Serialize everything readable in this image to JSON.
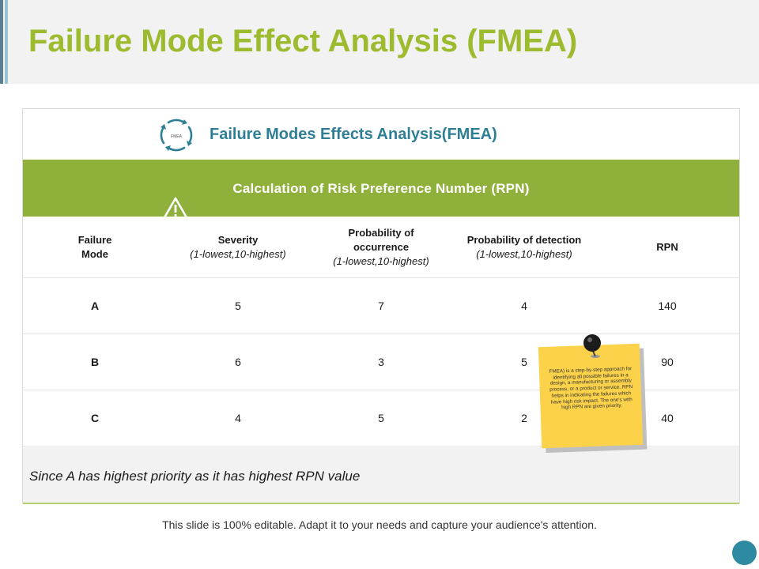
{
  "slide": {
    "title": "Failure Mode Effect Analysis (FMEA)",
    "footer": "This slide is 100% editable. Adapt it to your needs and capture your audience's attention."
  },
  "card": {
    "title": "Failure Modes Effects Analysis(FMEA)",
    "band_title": "Calculation of Risk Preference Number (RPN)",
    "icon_label": "FMEA"
  },
  "table": {
    "headers": [
      {
        "main": "Failure Mode",
        "sub": ""
      },
      {
        "main": "Severity",
        "sub": "(1-lowest,10-highest)"
      },
      {
        "main": "Probability of occurrence",
        "sub": "(1-lowest,10-highest)"
      },
      {
        "main": "Probability of detection",
        "sub": "(1-lowest,10-highest)"
      },
      {
        "main": "RPN",
        "sub": ""
      }
    ],
    "rows": [
      [
        "A",
        "5",
        "7",
        "4",
        "140"
      ],
      [
        "B",
        "6",
        "3",
        "5",
        "90"
      ],
      [
        "C",
        "4",
        "5",
        "2",
        "40"
      ]
    ]
  },
  "conclusion": "Since A has highest priority as it has highest RPN value",
  "note": "FMEA) is a step-by-step approach for identifying all possible failures in a design, a manufacturing or assembly process, or a product or service. RPN helps in indicating the failures which have high risk impact. The one's with high RPN are given priority.",
  "colors": {
    "title_green": "#9dbb2f",
    "band_green": "#8fb03a",
    "heading_teal": "#2e7f96",
    "note_yellow": "#fcd24a"
  }
}
